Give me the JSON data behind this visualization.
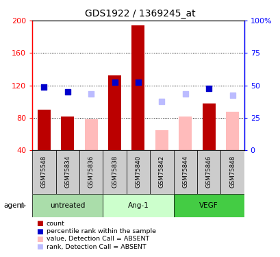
{
  "title": "GDS1922 / 1369245_at",
  "samples": [
    "GSM75548",
    "GSM75834",
    "GSM75836",
    "GSM75838",
    "GSM75840",
    "GSM75842",
    "GSM75844",
    "GSM75846",
    "GSM75848"
  ],
  "red_bars": [
    90,
    82,
    null,
    132,
    194,
    null,
    null,
    98,
    null
  ],
  "pink_bars": [
    null,
    null,
    78,
    null,
    null,
    65,
    82,
    null,
    88
  ],
  "blue_dots": [
    118,
    112,
    null,
    124,
    124,
    null,
    null,
    116,
    null
  ],
  "lavender_dots": [
    null,
    null,
    110,
    null,
    null,
    100,
    110,
    null,
    108
  ],
  "ylim_left": [
    40,
    200
  ],
  "ylim_right": [
    0,
    100
  ],
  "yticks_left": [
    40,
    80,
    120,
    160,
    200
  ],
  "yticks_right": [
    0,
    25,
    50,
    75,
    100
  ],
  "ytick_right_labels": [
    "0",
    "25",
    "50",
    "75",
    "100%"
  ],
  "red_color": "#bb0000",
  "pink_color": "#ffbbbb",
  "blue_color": "#0000cc",
  "lavender_color": "#bbbbff",
  "dot_size": 28,
  "bar_width": 0.55,
  "groups": [
    {
      "label": "untreated",
      "start": 0,
      "end": 2,
      "color": "#aaddaa"
    },
    {
      "label": "Ang-1",
      "start": 3,
      "end": 5,
      "color": "#ccffcc"
    },
    {
      "label": "VEGF",
      "start": 6,
      "end": 8,
      "color": "#44cc44"
    }
  ],
  "legend_items": [
    {
      "color": "#bb0000",
      "label": "count"
    },
    {
      "color": "#0000cc",
      "label": "percentile rank within the sample"
    },
    {
      "color": "#ffbbbb",
      "label": "value, Detection Call = ABSENT"
    },
    {
      "color": "#bbbbff",
      "label": "rank, Detection Call = ABSENT"
    }
  ]
}
